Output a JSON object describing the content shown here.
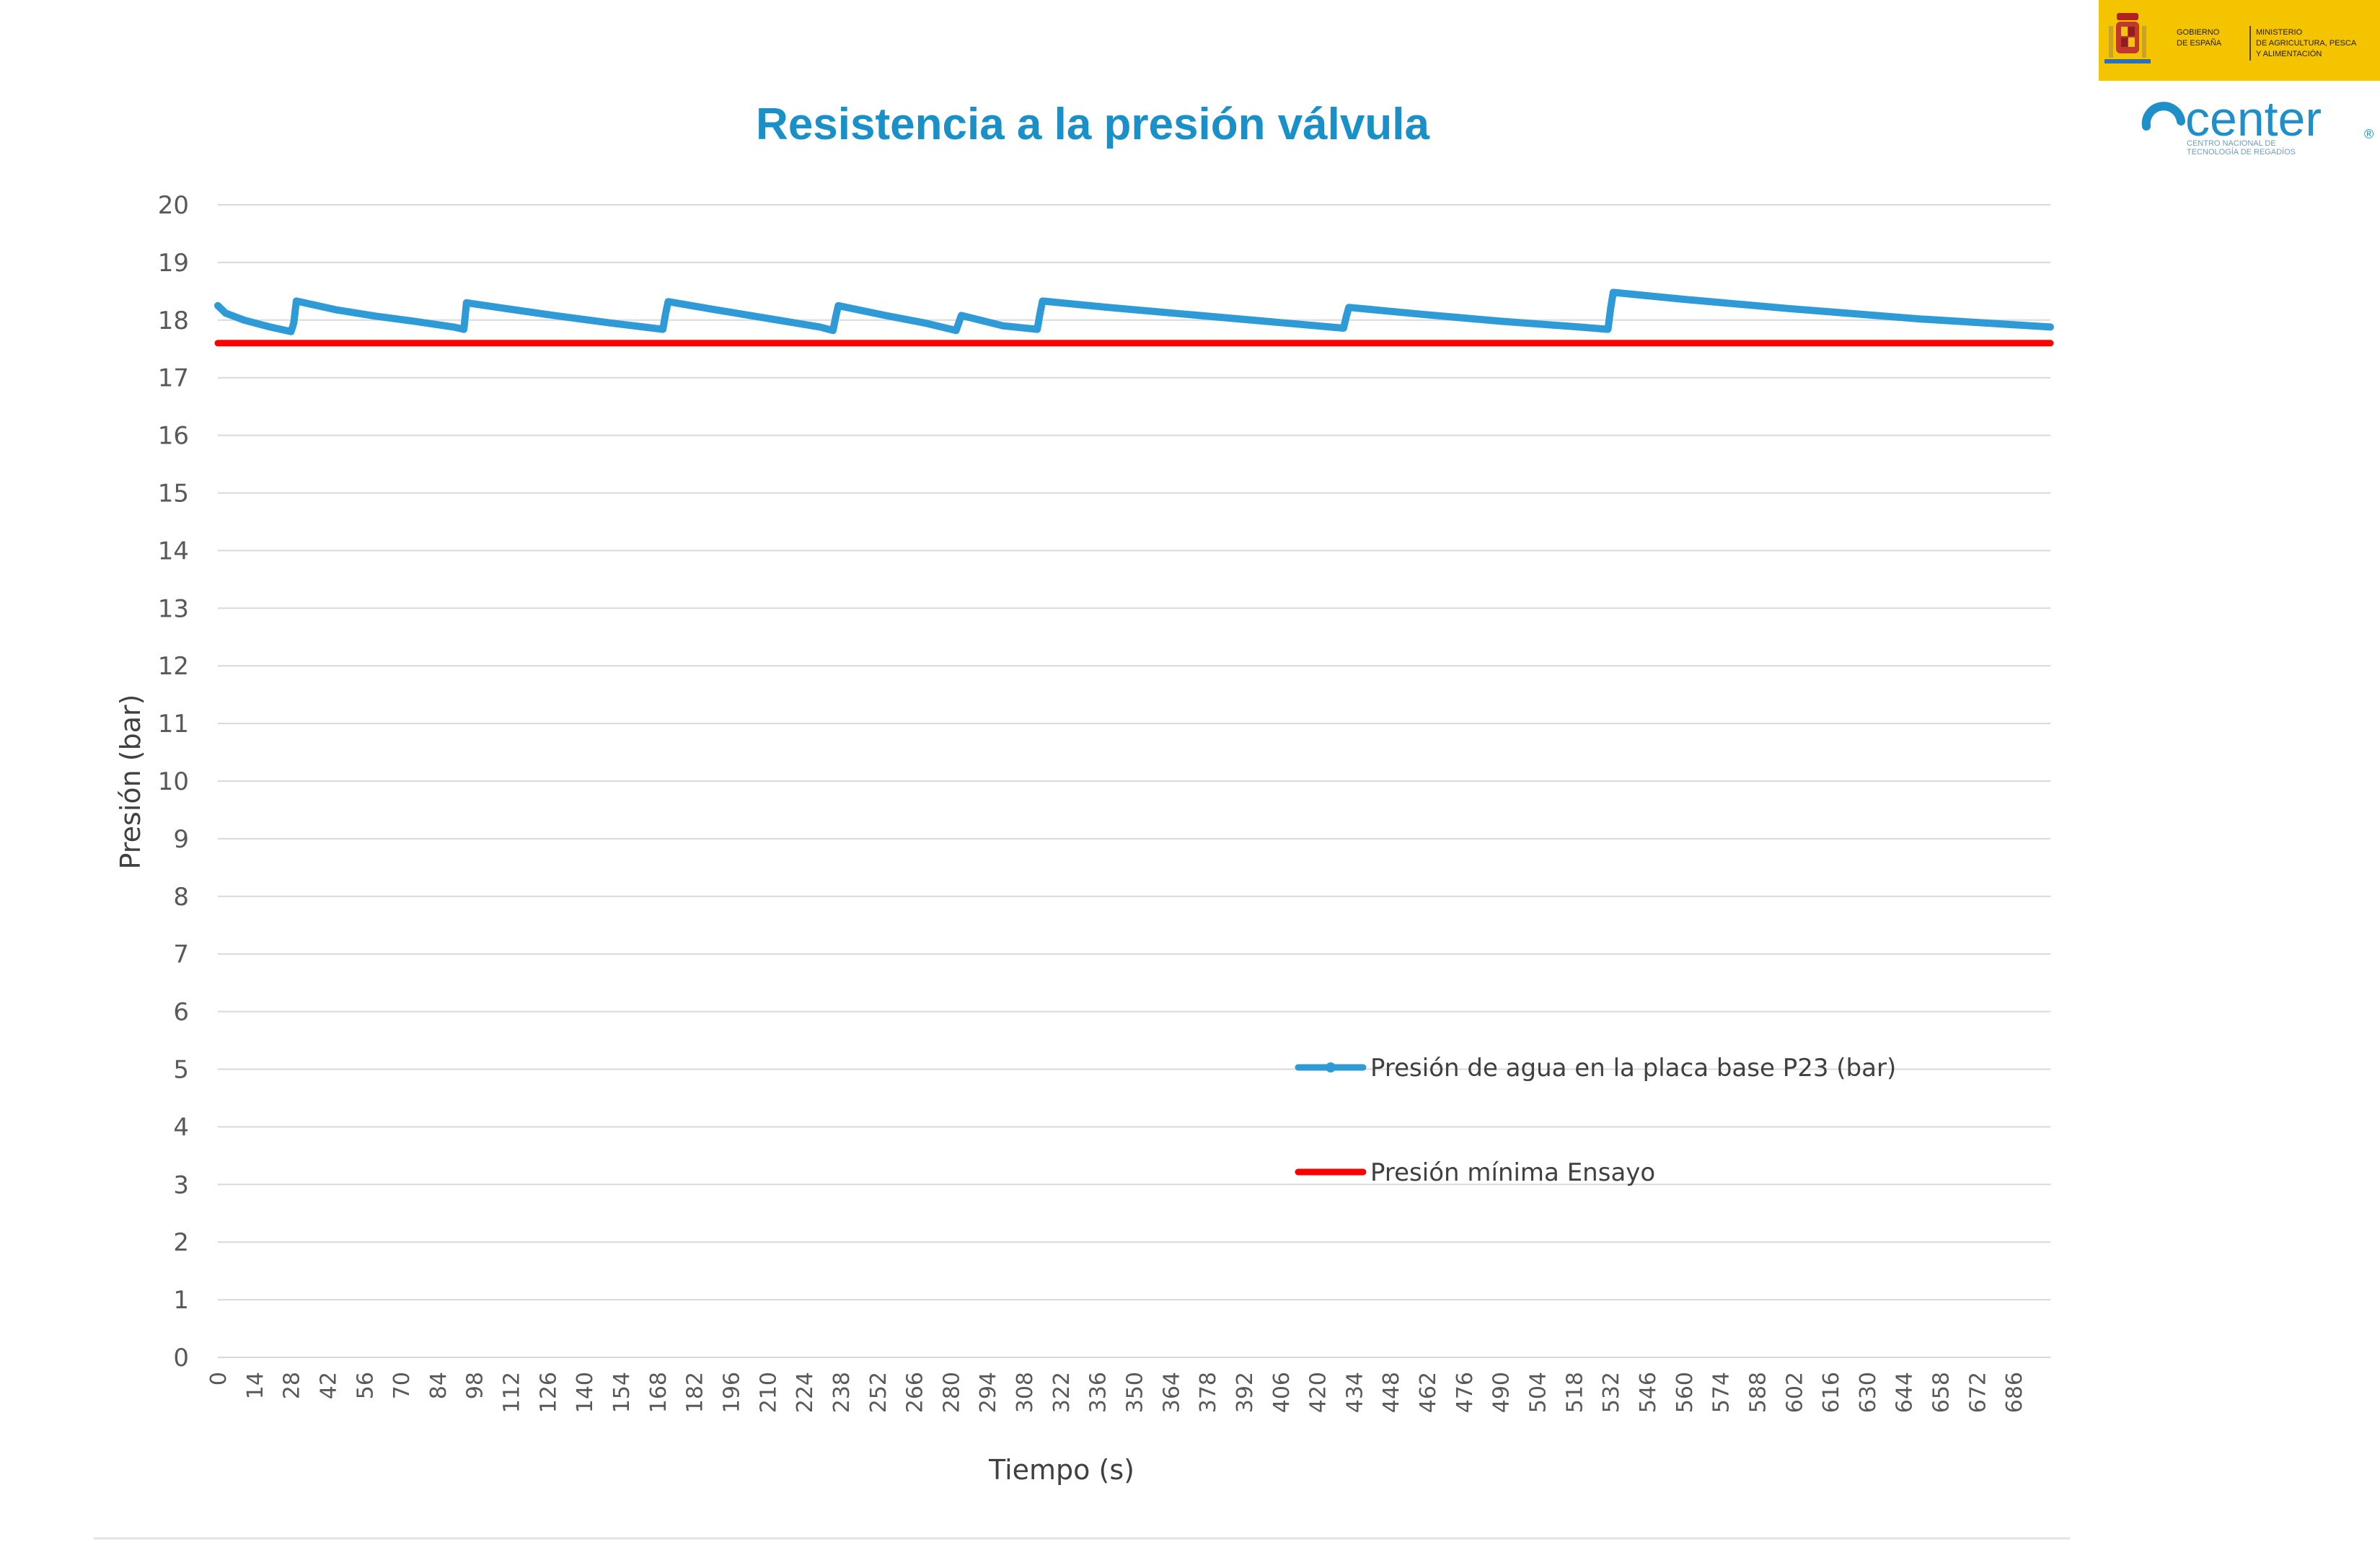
{
  "logos": {
    "gobierno_line1": "GOBIERNO",
    "gobierno_line2": "DE ESPAÑA",
    "ministerio_line1": "MINISTERIO",
    "ministerio_line2": "DE AGRICULTURA, PESCA",
    "ministerio_line3": "Y ALIMENTACIÓN",
    "center_word": "center",
    "center_sub1": "CENTRO NACIONAL DE",
    "center_sub2": "TECNOLOGÍA DE REGADÍOS",
    "gov_color": "#f5c400",
    "center_color": "#1f8fc9"
  },
  "chart_data": {
    "type": "line",
    "title": "Resistencia a la presión válvula",
    "xlabel": "Tiempo (s)",
    "ylabel": "Presión (bar)",
    "ylim": [
      0,
      20
    ],
    "xlim": [
      0,
      700
    ],
    "x_ticks": [
      0,
      14,
      28,
      42,
      56,
      70,
      84,
      98,
      112,
      126,
      140,
      154,
      168,
      182,
      196,
      210,
      224,
      238,
      252,
      266,
      280,
      294,
      308,
      322,
      336,
      350,
      364,
      378,
      392,
      406,
      420,
      434,
      448,
      462,
      476,
      490,
      504,
      518,
      532,
      546,
      560,
      574,
      588,
      602,
      616,
      630,
      644,
      658,
      672,
      686
    ],
    "y_ticks": [
      0,
      1,
      2,
      3,
      4,
      5,
      6,
      7,
      8,
      9,
      10,
      11,
      12,
      13,
      14,
      15,
      16,
      17,
      18,
      19,
      20
    ],
    "grid": true,
    "legend_position": "inside-lower-right",
    "series": [
      {
        "name": "Presión de agua en la placa base P23 (bar)",
        "color": "#2e9bd6",
        "x": [
          0,
          3,
          10,
          20,
          28,
          29,
          30,
          45,
          60,
          75,
          90,
          94,
          95,
          110,
          130,
          150,
          170,
          171,
          172,
          190,
          210,
          230,
          235,
          236,
          237,
          255,
          270,
          282,
          283,
          284,
          300,
          313,
          314,
          315,
          340,
          370,
          400,
          430,
          431,
          432,
          460,
          490,
          520,
          531,
          532,
          533,
          560,
          600,
          650,
          700
        ],
        "y": [
          18.25,
          18.12,
          18.0,
          17.88,
          17.8,
          17.95,
          18.33,
          18.18,
          18.07,
          17.98,
          17.88,
          17.84,
          18.3,
          18.2,
          18.07,
          17.95,
          17.84,
          18.1,
          18.32,
          18.18,
          18.03,
          17.88,
          17.82,
          18.05,
          18.25,
          18.08,
          17.95,
          17.82,
          17.95,
          18.08,
          17.9,
          17.84,
          18.1,
          18.33,
          18.22,
          18.1,
          17.98,
          17.86,
          18.05,
          18.22,
          18.1,
          17.98,
          17.88,
          17.84,
          18.2,
          18.48,
          18.36,
          18.2,
          18.02,
          17.88
        ]
      },
      {
        "name": "Presión mínima Ensayo",
        "color": "#ff0000",
        "x": [
          0,
          700
        ],
        "y": [
          17.6,
          17.6
        ]
      }
    ]
  }
}
